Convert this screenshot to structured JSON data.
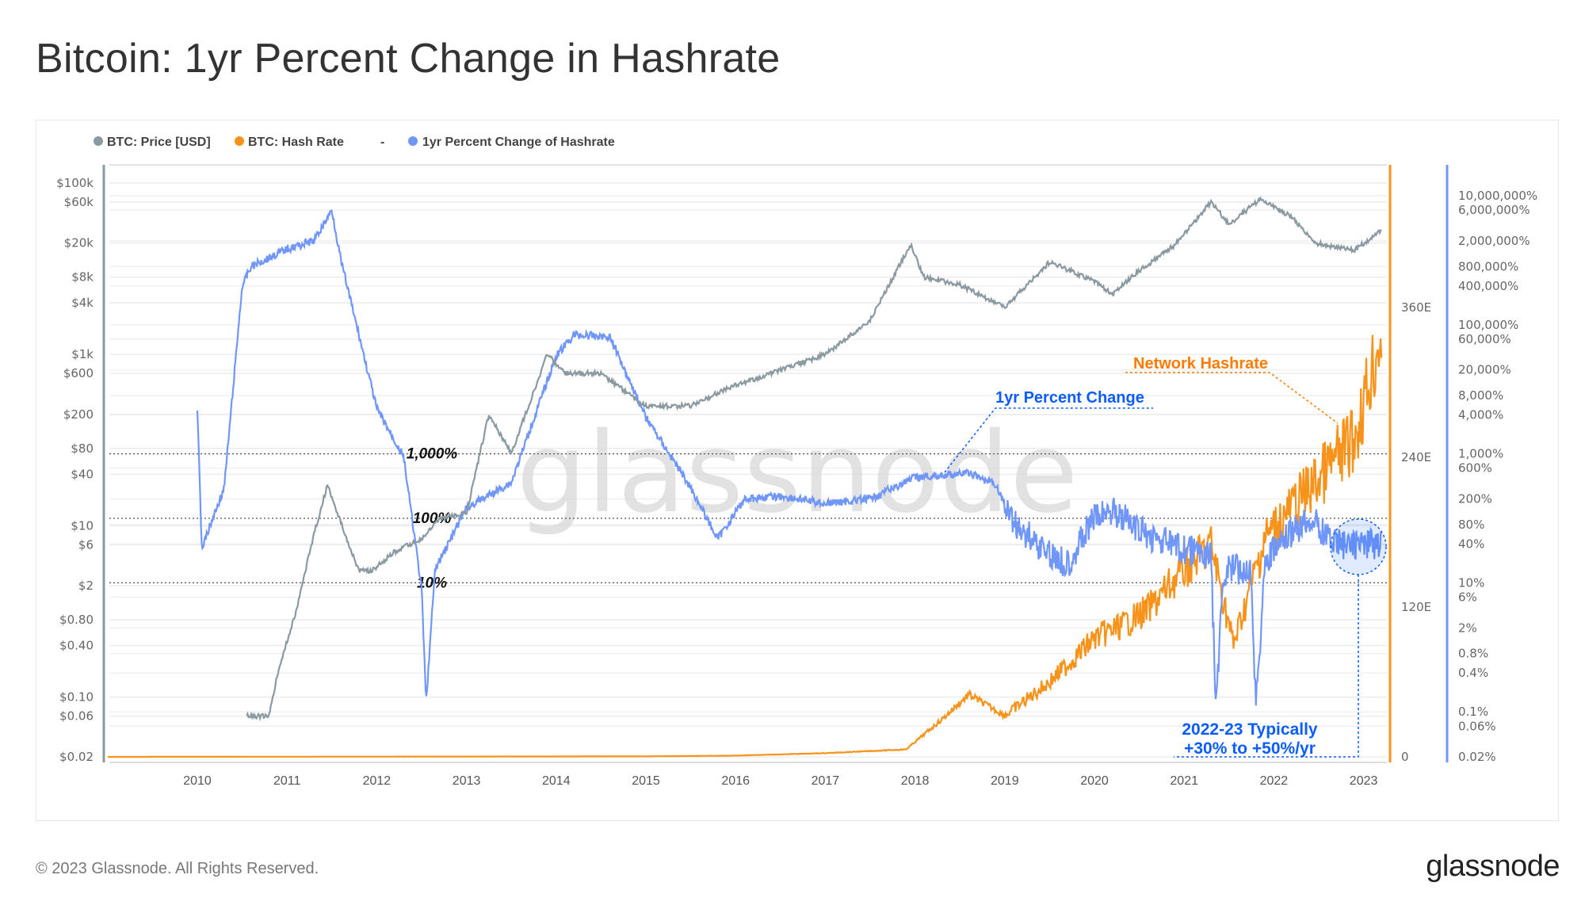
{
  "title": "Bitcoin: 1yr Percent Change in Hashrate",
  "footer": "© 2023 Glassnode. All Rights Reserved.",
  "logo": "glassnode",
  "watermark": "glassnode",
  "colors": {
    "price": "#8a9aa0",
    "hashrate": "#f7931a",
    "pct": "#6f96f8",
    "annot_orange": "#ff7a00",
    "annot_blue": "#0b5cff"
  },
  "chart_data": {
    "type": "line",
    "legend": {
      "placement": "top-left",
      "items": [
        "BTC: Price [USD]",
        "BTC: Hash Rate",
        "-",
        "1yr Percent Change of Hashrate"
      ]
    },
    "x_ticks": [
      "2010",
      "2011",
      "2012",
      "2013",
      "2014",
      "2015",
      "2016",
      "2017",
      "2018",
      "2019",
      "2020",
      "2021",
      "2022",
      "2023"
    ],
    "xlim": [
      2009.0,
      2023.35
    ],
    "y_left": {
      "scale": "log",
      "ylim": [
        0.02,
        100000
      ],
      "ticks": [
        [
          100000,
          "$100k"
        ],
        [
          60000,
          "$60k"
        ],
        [
          20000,
          "$20k"
        ],
        [
          8000,
          "$8k"
        ],
        [
          4000,
          "$4k"
        ],
        [
          1000,
          "$1k"
        ],
        [
          600,
          "$600"
        ],
        [
          200,
          "$200"
        ],
        [
          80,
          "$80"
        ],
        [
          40,
          "$40"
        ],
        [
          10,
          "$10"
        ],
        [
          6,
          "$6"
        ],
        [
          2,
          "$2"
        ],
        [
          0.8,
          "$0.80"
        ],
        [
          0.4,
          "$0.40"
        ],
        [
          0.1,
          "$0.10"
        ],
        [
          0.06,
          "$0.06"
        ],
        [
          0.02,
          "$0.02"
        ]
      ]
    },
    "y_right_hashrate": {
      "scale": "linear",
      "ylim": [
        0,
        360
      ],
      "ticks": [
        [
          0,
          "0"
        ],
        [
          120,
          "120E"
        ],
        [
          240,
          "240E"
        ],
        [
          360,
          "360E"
        ]
      ]
    },
    "y_right_pct": {
      "scale": "log",
      "ylim": [
        0.02,
        10000000
      ],
      "ticks": [
        [
          10000000,
          "10,000,000%"
        ],
        [
          6000000,
          "6,000,000%"
        ],
        [
          2000000,
          "2,000,000%"
        ],
        [
          800000,
          "800,000%"
        ],
        [
          400000,
          "400,000%"
        ],
        [
          100000,
          "100,000%"
        ],
        [
          60000,
          "60,000%"
        ],
        [
          20000,
          "20,000%"
        ],
        [
          8000,
          "8,000%"
        ],
        [
          4000,
          "4,000%"
        ],
        [
          1000,
          "1,000%"
        ],
        [
          600,
          "600%"
        ],
        [
          200,
          "200%"
        ],
        [
          80,
          "80%"
        ],
        [
          40,
          "40%"
        ],
        [
          10,
          "10%"
        ],
        [
          6,
          "6%"
        ],
        [
          2,
          "2%"
        ],
        [
          0.8,
          "0.8%"
        ],
        [
          0.4,
          "0.4%"
        ],
        [
          0.1,
          "0.1%"
        ],
        [
          0.06,
          "0.06%"
        ],
        [
          0.02,
          "0.02%"
        ]
      ]
    },
    "reference_lines": [
      {
        "value": 1000,
        "label": "1,000%"
      },
      {
        "value": 100,
        "label": "100%"
      },
      {
        "value": 10,
        "label": "10%"
      }
    ],
    "series": [
      {
        "name": "BTC: Price [USD]",
        "axis": "left",
        "points": [
          [
            2010.55,
            0.06
          ],
          [
            2010.8,
            0.06
          ],
          [
            2010.9,
            0.2
          ],
          [
            2011.1,
            1
          ],
          [
            2011.3,
            8
          ],
          [
            2011.45,
            30
          ],
          [
            2011.55,
            15
          ],
          [
            2011.8,
            3
          ],
          [
            2011.95,
            3
          ],
          [
            2012.2,
            5
          ],
          [
            2012.5,
            7
          ],
          [
            2012.7,
            12
          ],
          [
            2013.0,
            14
          ],
          [
            2013.25,
            200
          ],
          [
            2013.5,
            70
          ],
          [
            2013.9,
            1000
          ],
          [
            2014.1,
            600
          ],
          [
            2014.5,
            600
          ],
          [
            2015.0,
            250
          ],
          [
            2015.5,
            250
          ],
          [
            2015.9,
            400
          ],
          [
            2016.5,
            650
          ],
          [
            2017.0,
            1000
          ],
          [
            2017.5,
            2500
          ],
          [
            2017.95,
            19000
          ],
          [
            2018.1,
            8000
          ],
          [
            2018.5,
            6500
          ],
          [
            2018.9,
            4000
          ],
          [
            2019.0,
            3500
          ],
          [
            2019.5,
            12000
          ],
          [
            2020.0,
            7200
          ],
          [
            2020.2,
            5000
          ],
          [
            2020.5,
            9500
          ],
          [
            2020.9,
            19000
          ],
          [
            2021.3,
            60000
          ],
          [
            2021.5,
            33000
          ],
          [
            2021.85,
            65000
          ],
          [
            2022.2,
            40000
          ],
          [
            2022.45,
            20000
          ],
          [
            2022.9,
            16500
          ],
          [
            2023.2,
            28000
          ]
        ]
      },
      {
        "name": "BTC: Hash Rate",
        "axis": "right_hashrate",
        "points": [
          [
            2009.0,
            0
          ],
          [
            2015.0,
            0.4
          ],
          [
            2016.0,
            1
          ],
          [
            2017.0,
            3
          ],
          [
            2017.9,
            6
          ],
          [
            2018.3,
            30
          ],
          [
            2018.6,
            50
          ],
          [
            2019.0,
            33
          ],
          [
            2019.5,
            60
          ],
          [
            2020.0,
            95
          ],
          [
            2020.3,
            105
          ],
          [
            2020.6,
            118
          ],
          [
            2021.0,
            150
          ],
          [
            2021.3,
            170
          ],
          [
            2021.55,
            90
          ],
          [
            2021.9,
            175
          ],
          [
            2022.4,
            215
          ],
          [
            2022.9,
            255
          ],
          [
            2023.2,
            340
          ]
        ]
      },
      {
        "name": "1yr Percent Change of Hashrate",
        "axis": "right_pct",
        "points": [
          [
            2010.0,
            5000
          ],
          [
            2010.05,
            34
          ],
          [
            2010.3,
            300
          ],
          [
            2010.5,
            400000
          ],
          [
            2010.6,
            800000
          ],
          [
            2011.0,
            1500000
          ],
          [
            2011.3,
            2000000
          ],
          [
            2011.5,
            6000000
          ],
          [
            2011.6,
            1000000
          ],
          [
            2012.0,
            5000
          ],
          [
            2012.3,
            900
          ],
          [
            2012.5,
            8
          ],
          [
            2012.55,
            0.14
          ],
          [
            2012.65,
            16
          ],
          [
            2013.0,
            145
          ],
          [
            2013.5,
            360
          ],
          [
            2014.0,
            33000
          ],
          [
            2014.2,
            70000
          ],
          [
            2014.6,
            65000
          ],
          [
            2015.0,
            3700
          ],
          [
            2015.5,
            300
          ],
          [
            2015.8,
            48
          ],
          [
            2016.1,
            200
          ],
          [
            2016.5,
            220
          ],
          [
            2017.0,
            170
          ],
          [
            2017.5,
            200
          ],
          [
            2018.0,
            430
          ],
          [
            2018.6,
            500
          ],
          [
            2018.9,
            330
          ],
          [
            2019.1,
            85
          ],
          [
            2019.5,
            28
          ],
          [
            2019.7,
            20
          ],
          [
            2020.0,
            100
          ],
          [
            2020.2,
            140
          ],
          [
            2020.5,
            63
          ],
          [
            2021.0,
            32
          ],
          [
            2021.3,
            28
          ],
          [
            2021.35,
            0.14
          ],
          [
            2021.45,
            16
          ],
          [
            2021.75,
            16
          ],
          [
            2021.8,
            0.12
          ],
          [
            2021.9,
            20
          ],
          [
            2022.0,
            32
          ],
          [
            2022.4,
            100
          ],
          [
            2022.7,
            40
          ],
          [
            2023.2,
            40
          ]
        ]
      }
    ],
    "annotations": [
      {
        "text": "Network Hashrate",
        "color": "annot_orange"
      },
      {
        "text": "1yr Percent Change",
        "color": "annot_blue"
      },
      {
        "text": "2022-23 Typically",
        "color": "annot_blue"
      },
      {
        "text": "+30% to +50%/yr",
        "color": "annot_blue"
      }
    ]
  }
}
